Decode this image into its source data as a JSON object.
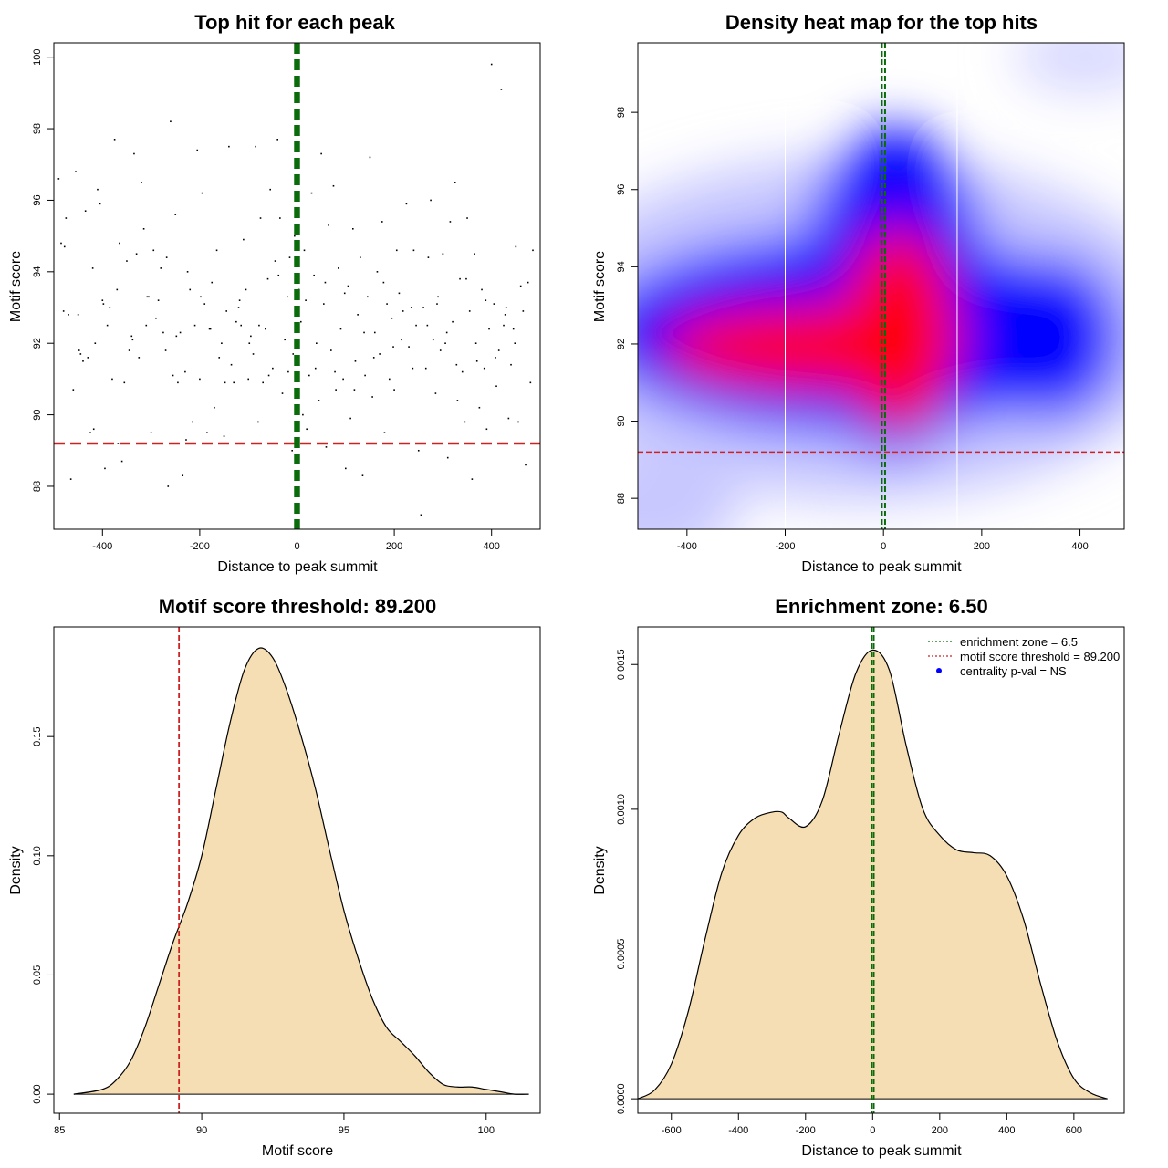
{
  "colors": {
    "threshold": "#cc2222",
    "zone": "#0a6b0a",
    "density_fill": "#f5deb3",
    "heat_low": "#0000ff",
    "heat_high": "#ff0000",
    "legend_point": "#0000ff"
  },
  "chart_data": [
    {
      "type": "scatter",
      "title": "Top hit for each peak",
      "xlabel": "Distance to peak summit",
      "ylabel": "Motif score",
      "xlim": [
        -500,
        500
      ],
      "ylim": [
        86.8,
        100.4
      ],
      "xticks": [
        -400,
        -200,
        0,
        200,
        400
      ],
      "yticks": [
        88,
        90,
        92,
        94,
        96,
        98,
        100
      ],
      "hlines": [
        {
          "y": 89.2,
          "role": "threshold"
        }
      ],
      "vlines": [
        {
          "x": -3.25,
          "role": "zone"
        },
        {
          "x": 3.25,
          "role": "zone"
        }
      ],
      "points": [
        [
          -490,
          96.6
        ],
        [
          -485,
          94.8
        ],
        [
          -480,
          92.9
        ],
        [
          -475,
          95.5
        ],
        [
          -470,
          92.8
        ],
        [
          -465,
          88.2
        ],
        [
          -460,
          90.7
        ],
        [
          -455,
          96.8
        ],
        [
          -450,
          92.8
        ],
        [
          -445,
          91.7
        ],
        [
          -440,
          91.5
        ],
        [
          -435,
          95.7
        ],
        [
          -430,
          91.6
        ],
        [
          -425,
          89.5
        ],
        [
          -420,
          94.1
        ],
        [
          -415,
          92.0
        ],
        [
          -410,
          96.3
        ],
        [
          -405,
          95.9
        ],
        [
          -400,
          93.2
        ],
        [
          -395,
          88.5
        ],
        [
          -390,
          92.5
        ],
        [
          -385,
          93.0
        ],
        [
          -380,
          91.0
        ],
        [
          -375,
          97.7
        ],
        [
          -370,
          93.5
        ],
        [
          -365,
          94.8
        ],
        [
          -360,
          88.7
        ],
        [
          -355,
          90.9
        ],
        [
          -350,
          94.3
        ],
        [
          -345,
          91.8
        ],
        [
          -340,
          92.2
        ],
        [
          -335,
          97.3
        ],
        [
          -330,
          94.5
        ],
        [
          -325,
          91.6
        ],
        [
          -320,
          96.5
        ],
        [
          -315,
          95.2
        ],
        [
          -310,
          92.5
        ],
        [
          -305,
          93.3
        ],
        [
          -300,
          89.5
        ],
        [
          -295,
          94.6
        ],
        [
          -290,
          92.7
        ],
        [
          -285,
          93.2
        ],
        [
          -280,
          94.1
        ],
        [
          -275,
          92.3
        ],
        [
          -270,
          91.8
        ],
        [
          -265,
          88.0
        ],
        [
          -260,
          98.2
        ],
        [
          -255,
          91.1
        ],
        [
          -250,
          95.6
        ],
        [
          -245,
          90.9
        ],
        [
          -240,
          92.3
        ],
        [
          -235,
          88.3
        ],
        [
          -230,
          91.2
        ],
        [
          -225,
          94.0
        ],
        [
          -220,
          93.5
        ],
        [
          -215,
          89.8
        ],
        [
          -210,
          92.5
        ],
        [
          -205,
          97.4
        ],
        [
          -200,
          91.0
        ],
        [
          -195,
          96.2
        ],
        [
          -190,
          93.1
        ],
        [
          -185,
          89.5
        ],
        [
          -180,
          92.4
        ],
        [
          -175,
          93.7
        ],
        [
          -170,
          90.2
        ],
        [
          -165,
          94.6
        ],
        [
          -160,
          91.6
        ],
        [
          -155,
          92.0
        ],
        [
          -150,
          89.4
        ],
        [
          -145,
          92.9
        ],
        [
          -140,
          97.5
        ],
        [
          -135,
          91.4
        ],
        [
          -130,
          90.9
        ],
        [
          -125,
          92.6
        ],
        [
          -120,
          93.0
        ],
        [
          -115,
          92.5
        ],
        [
          -110,
          94.9
        ],
        [
          -105,
          93.5
        ],
        [
          -100,
          91.0
        ],
        [
          -95,
          92.2
        ],
        [
          -90,
          91.7
        ],
        [
          -85,
          97.5
        ],
        [
          -80,
          89.8
        ],
        [
          -75,
          95.5
        ],
        [
          -70,
          90.9
        ],
        [
          -65,
          92.4
        ],
        [
          -60,
          93.8
        ],
        [
          -55,
          96.3
        ],
        [
          -50,
          91.3
        ],
        [
          -45,
          94.3
        ],
        [
          -40,
          97.7
        ],
        [
          -35,
          95.5
        ],
        [
          -30,
          90.6
        ],
        [
          -25,
          92.1
        ],
        [
          -20,
          93.3
        ],
        [
          -15,
          94.4
        ],
        [
          -10,
          89.0
        ],
        [
          -5,
          95.0
        ],
        [
          -8,
          91.7
        ],
        [
          -2,
          90.2
        ],
        [
          4,
          93.5
        ],
        [
          8,
          92.6
        ],
        [
          12,
          90.0
        ],
        [
          15,
          94.6
        ],
        [
          20,
          89.6
        ],
        [
          25,
          91.1
        ],
        [
          30,
          96.2
        ],
        [
          35,
          93.9
        ],
        [
          40,
          92.0
        ],
        [
          45,
          90.4
        ],
        [
          50,
          97.3
        ],
        [
          55,
          93.1
        ],
        [
          60,
          89.1
        ],
        [
          65,
          95.3
        ],
        [
          70,
          91.8
        ],
        [
          75,
          96.4
        ],
        [
          80,
          90.7
        ],
        [
          85,
          94.1
        ],
        [
          90,
          92.4
        ],
        [
          95,
          91.0
        ],
        [
          100,
          88.5
        ],
        [
          105,
          93.6
        ],
        [
          110,
          89.9
        ],
        [
          115,
          95.2
        ],
        [
          120,
          91.5
        ],
        [
          125,
          92.8
        ],
        [
          130,
          94.4
        ],
        [
          135,
          88.3
        ],
        [
          140,
          91.1
        ],
        [
          145,
          93.3
        ],
        [
          150,
          97.2
        ],
        [
          155,
          90.5
        ],
        [
          160,
          92.3
        ],
        [
          165,
          94.0
        ],
        [
          170,
          91.7
        ],
        [
          175,
          95.4
        ],
        [
          180,
          89.5
        ],
        [
          185,
          93.1
        ],
        [
          190,
          91.0
        ],
        [
          195,
          92.7
        ],
        [
          200,
          90.7
        ],
        [
          205,
          94.6
        ],
        [
          210,
          93.4
        ],
        [
          215,
          92.1
        ],
        [
          220,
          89.2
        ],
        [
          225,
          95.9
        ],
        [
          230,
          91.9
        ],
        [
          235,
          93.0
        ],
        [
          240,
          94.6
        ],
        [
          245,
          92.5
        ],
        [
          250,
          89.0
        ],
        [
          255,
          87.2
        ],
        [
          260,
          93.0
        ],
        [
          265,
          91.3
        ],
        [
          270,
          94.4
        ],
        [
          275,
          96.0
        ],
        [
          280,
          92.1
        ],
        [
          285,
          90.6
        ],
        [
          290,
          93.3
        ],
        [
          295,
          91.8
        ],
        [
          300,
          94.5
        ],
        [
          305,
          92.0
        ],
        [
          310,
          88.8
        ],
        [
          315,
          95.4
        ],
        [
          320,
          92.6
        ],
        [
          325,
          96.5
        ],
        [
          330,
          90.4
        ],
        [
          335,
          93.8
        ],
        [
          340,
          91.2
        ],
        [
          345,
          89.8
        ],
        [
          350,
          95.5
        ],
        [
          355,
          92.9
        ],
        [
          360,
          88.2
        ],
        [
          365,
          94.5
        ],
        [
          370,
          91.5
        ],
        [
          375,
          90.2
        ],
        [
          380,
          93.5
        ],
        [
          385,
          91.3
        ],
        [
          390,
          89.6
        ],
        [
          395,
          92.4
        ],
        [
          400,
          99.8
        ],
        [
          405,
          93.1
        ],
        [
          410,
          90.8
        ],
        [
          415,
          91.8
        ],
        [
          420,
          99.1
        ],
        [
          425,
          92.5
        ],
        [
          430,
          93.0
        ],
        [
          435,
          89.9
        ],
        [
          440,
          91.4
        ],
        [
          445,
          92.4
        ],
        [
          450,
          94.7
        ],
        [
          455,
          89.8
        ],
        [
          460,
          93.6
        ],
        [
          465,
          92.9
        ],
        [
          470,
          88.6
        ],
        [
          475,
          93.7
        ],
        [
          480,
          90.9
        ],
        [
          485,
          94.6
        ],
        [
          -478,
          94.7
        ],
        [
          -448,
          91.8
        ],
        [
          -418,
          89.6
        ],
        [
          -398,
          93.1
        ],
        [
          -368,
          89.2
        ],
        [
          -338,
          92.1
        ],
        [
          -308,
          93.3
        ],
        [
          -288,
          89.2
        ],
        [
          -268,
          94.4
        ],
        [
          -248,
          92.2
        ],
        [
          -228,
          89.3
        ],
        [
          -198,
          93.3
        ],
        [
          -178,
          92.4
        ],
        [
          -148,
          90.9
        ],
        [
          -118,
          93.2
        ],
        [
          -98,
          92.0
        ],
        [
          -78,
          92.5
        ],
        [
          -58,
          91.1
        ],
        [
          -38,
          93.9
        ],
        [
          -18,
          91.2
        ],
        [
          18,
          93.2
        ],
        [
          38,
          91.3
        ],
        [
          58,
          93.7
        ],
        [
          78,
          91.2
        ],
        [
          98,
          93.4
        ],
        [
          118,
          90.7
        ],
        [
          138,
          92.3
        ],
        [
          158,
          91.6
        ],
        [
          178,
          93.7
        ],
        [
          198,
          91.9
        ],
        [
          218,
          92.9
        ],
        [
          238,
          91.3
        ],
        [
          268,
          92.5
        ],
        [
          288,
          93.1
        ],
        [
          308,
          92.3
        ],
        [
          328,
          91.4
        ],
        [
          348,
          93.8
        ],
        [
          368,
          92.0
        ],
        [
          388,
          93.2
        ],
        [
          408,
          91.6
        ],
        [
          428,
          92.8
        ],
        [
          448,
          92.0
        ]
      ]
    },
    {
      "type": "heatmap",
      "title": "Density heat map for the top hits",
      "xlabel": "Distance to peak summit",
      "ylabel": "Motif score",
      "xlim": [
        -500,
        490
      ],
      "ylim": [
        87.2,
        99.8
      ],
      "xticks": [
        -400,
        -200,
        0,
        200,
        400
      ],
      "yticks": [
        88,
        90,
        92,
        94,
        96,
        98
      ],
      "hlines": [
        {
          "y": 89.2,
          "role": "threshold"
        }
      ],
      "vlines": [
        {
          "x": -3.25,
          "role": "zone"
        },
        {
          "x": 3.25,
          "role": "zone"
        }
      ],
      "separators_x": [
        -200,
        150
      ]
    },
    {
      "type": "area",
      "title": "Motif score threshold: 89.200",
      "xlabel": "Motif score",
      "ylabel": "Density",
      "xlim": [
        84.8,
        101.9
      ],
      "ylim": [
        -0.008,
        0.196
      ],
      "xticks": [
        85,
        90,
        95,
        100
      ],
      "yticks": [
        0.0,
        0.05,
        0.1,
        0.15
      ],
      "ytick_labels": [
        "0.00",
        "0.05",
        "0.10",
        "0.15"
      ],
      "vlines": [
        {
          "x": 89.2,
          "role": "threshold"
        }
      ],
      "x": [
        85.5,
        86.5,
        87.0,
        87.5,
        88.0,
        88.5,
        89.0,
        89.5,
        90.0,
        90.5,
        91.0,
        91.5,
        92.0,
        92.5,
        93.0,
        93.5,
        94.0,
        94.5,
        95.0,
        95.5,
        96.0,
        96.5,
        97.0,
        97.5,
        98.0,
        98.5,
        99.0,
        99.5,
        100.0,
        100.5,
        101.0,
        101.5
      ],
      "y": [
        0.0,
        0.002,
        0.006,
        0.014,
        0.028,
        0.046,
        0.064,
        0.08,
        0.1,
        0.128,
        0.156,
        0.178,
        0.187,
        0.183,
        0.169,
        0.15,
        0.128,
        0.102,
        0.077,
        0.057,
        0.04,
        0.028,
        0.022,
        0.016,
        0.009,
        0.004,
        0.003,
        0.003,
        0.002,
        0.001,
        0.0,
        0.0
      ]
    },
    {
      "type": "area",
      "title": "Enrichment zone: 6.50",
      "xlabel": "Distance to peak summit",
      "ylabel": "Density",
      "xlim": [
        -700,
        750
      ],
      "ylim": [
        -5e-05,
        0.00163
      ],
      "xticks": [
        -600,
        -400,
        -200,
        0,
        200,
        400,
        600
      ],
      "yticks": [
        0.0,
        0.0005,
        0.001,
        0.0015
      ],
      "ytick_labels": [
        "0.0000",
        "0.0005",
        "0.0010",
        "0.0015"
      ],
      "vlines": [
        {
          "x": -3.25,
          "role": "zone"
        },
        {
          "x": 3.25,
          "role": "zone"
        }
      ],
      "x": [
        -700,
        -650,
        -600,
        -550,
        -500,
        -450,
        -400,
        -350,
        -300,
        -270,
        -250,
        -200,
        -150,
        -100,
        -50,
        0,
        50,
        100,
        150,
        200,
        250,
        300,
        350,
        400,
        450,
        500,
        550,
        600,
        650,
        700
      ],
      "y": [
        0.0,
        3e-05,
        0.00012,
        0.0003,
        0.00055,
        0.00078,
        0.00091,
        0.00097,
        0.00099,
        0.00099,
        0.00097,
        0.00094,
        0.00103,
        0.00126,
        0.00147,
        0.00155,
        0.00148,
        0.00122,
        0.001,
        0.00091,
        0.00086,
        0.00085,
        0.00084,
        0.00077,
        0.00062,
        0.0004,
        0.0002,
        7e-05,
        2e-05,
        0.0
      ],
      "legend": {
        "position": "top-right",
        "items": [
          {
            "label": "enrichment zone = 6.5",
            "style": "dotted",
            "color_role": "zone"
          },
          {
            "label": "motif score threshold = 89.200",
            "style": "dotted",
            "color_role": "threshold"
          },
          {
            "label": "centrality p-val = NS",
            "style": "point",
            "color_role": "legend_point"
          }
        ]
      }
    }
  ]
}
